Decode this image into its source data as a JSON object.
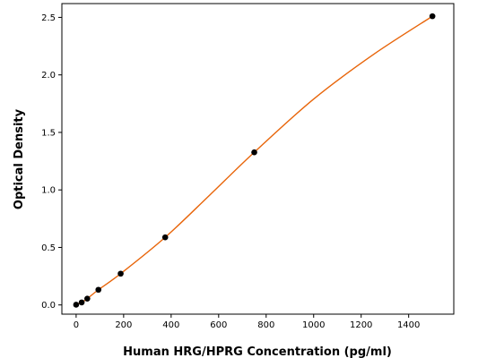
{
  "chart_data": {
    "type": "scatter",
    "title": "",
    "xlabel": "Human HRG/HPRG Concentration (pg/ml)",
    "ylabel": "Optical Density",
    "xlim": [
      -60,
      1590
    ],
    "ylim": [
      -0.08,
      2.62
    ],
    "x_ticks": [
      0,
      200,
      400,
      600,
      800,
      1000,
      1200,
      1400
    ],
    "y_ticks": [
      0.0,
      0.5,
      1.0,
      1.5,
      2.0,
      2.5
    ],
    "x_tick_labels": [
      "0",
      "200",
      "400",
      "600",
      "800",
      "1000",
      "1200",
      "1400"
    ],
    "y_tick_labels": [
      "0.0",
      "0.5",
      "1.0",
      "1.5",
      "2.0",
      "2.5"
    ],
    "grid": false,
    "legend": "none",
    "series": [
      {
        "kind": "points",
        "color": "#000000",
        "x": [
          0,
          23.4,
          46.9,
          93.8,
          187.5,
          375,
          750,
          1500
        ],
        "y": [
          0.002,
          0.022,
          0.055,
          0.132,
          0.272,
          0.588,
          1.327,
          2.51
        ]
      },
      {
        "kind": "fit-curve",
        "color": "#e8650a",
        "x": [
          0,
          23.4,
          46.9,
          93.8,
          187.5,
          375,
          562.5,
          750,
          1000,
          1250,
          1500
        ],
        "y": [
          0.002,
          0.022,
          0.055,
          0.132,
          0.272,
          0.588,
          0.955,
          1.327,
          1.79,
          2.175,
          2.51
        ]
      }
    ]
  }
}
